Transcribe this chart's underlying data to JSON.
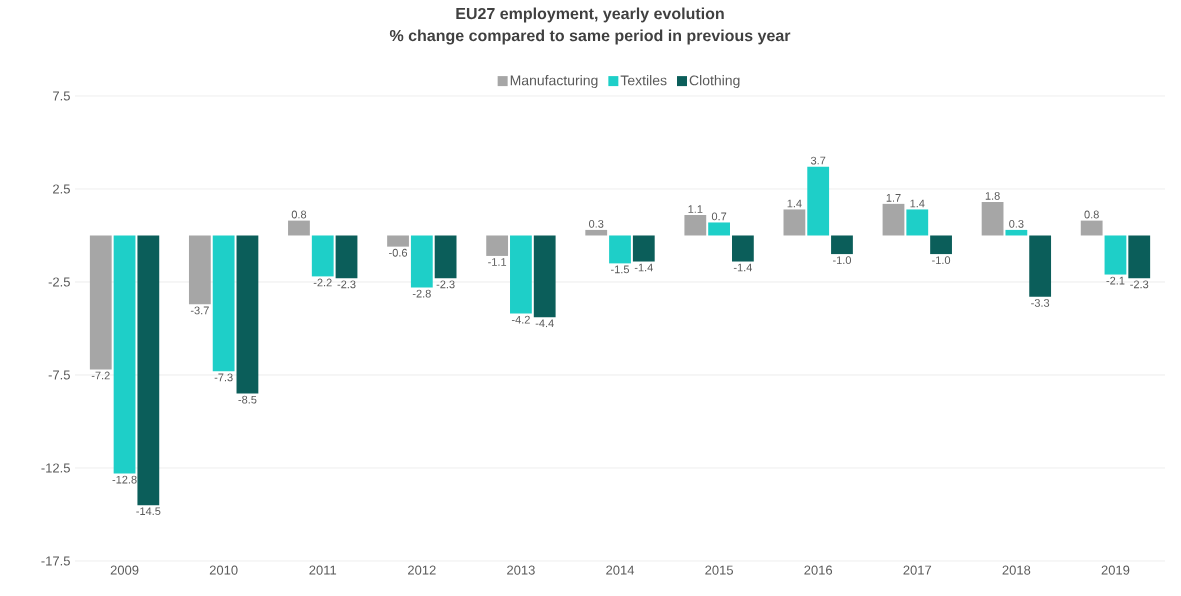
{
  "chart_data": {
    "type": "bar",
    "title": "EU27 employment, yearly evolution",
    "subtitle": "% change compared to same period in previous year",
    "categories": [
      "2009",
      "2010",
      "2011",
      "2012",
      "2013",
      "2014",
      "2015",
      "2016",
      "2017",
      "2018",
      "2019"
    ],
    "series": [
      {
        "name": "Manufacturing",
        "color": "#a6a6a6",
        "values": [
          -7.2,
          -3.7,
          0.8,
          -0.6,
          -1.1,
          0.3,
          1.1,
          1.4,
          1.7,
          1.8,
          0.8
        ],
        "value_labels": [
          "-7.2",
          "-3.7",
          "0.8",
          "-0.6",
          "-1.1",
          "0.3",
          "1.1",
          "1.4",
          "1.7",
          "1.8",
          "0.8"
        ]
      },
      {
        "name": "Textiles",
        "color": "#1ecfc8",
        "values": [
          -12.8,
          -7.3,
          -2.2,
          -2.8,
          -4.2,
          -1.5,
          0.7,
          3.7,
          1.4,
          0.3,
          -2.1
        ],
        "value_labels": [
          "-12.8",
          "-7.3",
          "-2.2",
          "-2.8",
          "-4.2",
          "-1.5",
          "0.7",
          "3.7",
          "1.4",
          "0.3",
          "-2.1"
        ]
      },
      {
        "name": "Clothing",
        "color": "#0b5e5a",
        "values": [
          -14.5,
          -8.5,
          -2.3,
          -2.3,
          -4.4,
          -1.4,
          -1.4,
          -1.0,
          -1.0,
          -3.3,
          -2.3
        ],
        "value_labels": [
          "-14.5",
          "-8.5",
          "-2.3",
          "-2.3",
          "-4.4",
          "-1.4",
          "-1.4",
          "-1.0",
          "-1.0",
          "-3.3",
          "-2.3"
        ]
      }
    ],
    "ylim": [
      -17.5,
      7.5
    ],
    "yticks": [
      -17.5,
      -12.5,
      -7.5,
      -2.5,
      2.5,
      7.5
    ],
    "grid": "y",
    "legend": "top"
  }
}
